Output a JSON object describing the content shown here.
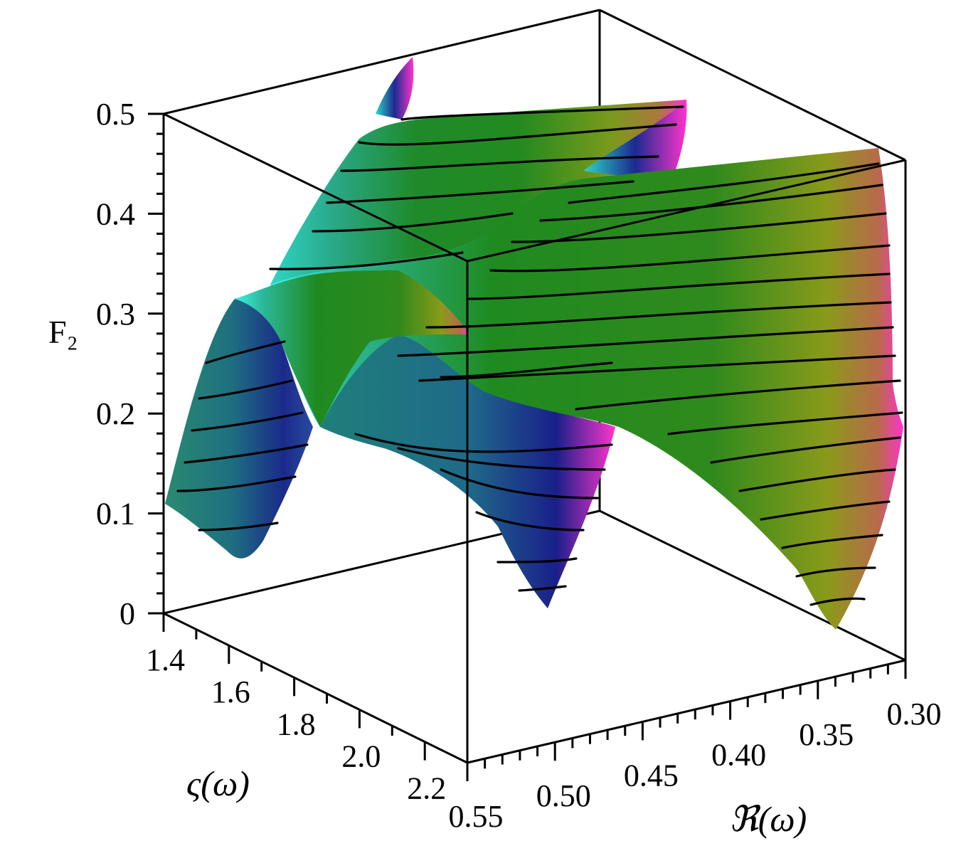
{
  "chart_data": {
    "type": "surface3d",
    "title": "",
    "zlabel": "F₂",
    "xlabel": "ℜ(ω)",
    "ylabel": "ς(ω)",
    "z_ticks": [
      "0",
      "0.1",
      "0.2",
      "0.3",
      "0.4",
      "0.5"
    ],
    "x_ticks": [
      "0.55",
      "0.50",
      "0.45",
      "0.40",
      "0.35",
      "0.30"
    ],
    "y_ticks": [
      "1.4",
      "1.6",
      "1.8",
      "2.0",
      "2.2"
    ],
    "xlim": [
      0.3,
      0.55
    ],
    "ylim": [
      1.4,
      2.2
    ],
    "zlim": [
      0,
      0.5
    ],
    "contours": true,
    "colormap": [
      "#1a1a8c",
      "#1f7a7a",
      "#2ec4b8",
      "#228b22",
      "#8a9a1a",
      "#c0567a",
      "#ff33cc"
    ],
    "series": [
      {
        "band": "front",
        "peak_z_front": 0.32,
        "minimum_z_back": 0.0,
        "minimum_z_front": 0.18
      },
      {
        "band": "back",
        "peak_z_front": 0.46,
        "minimum_z_left": 0.05,
        "minimum_z_front": 0.22
      }
    ]
  }
}
